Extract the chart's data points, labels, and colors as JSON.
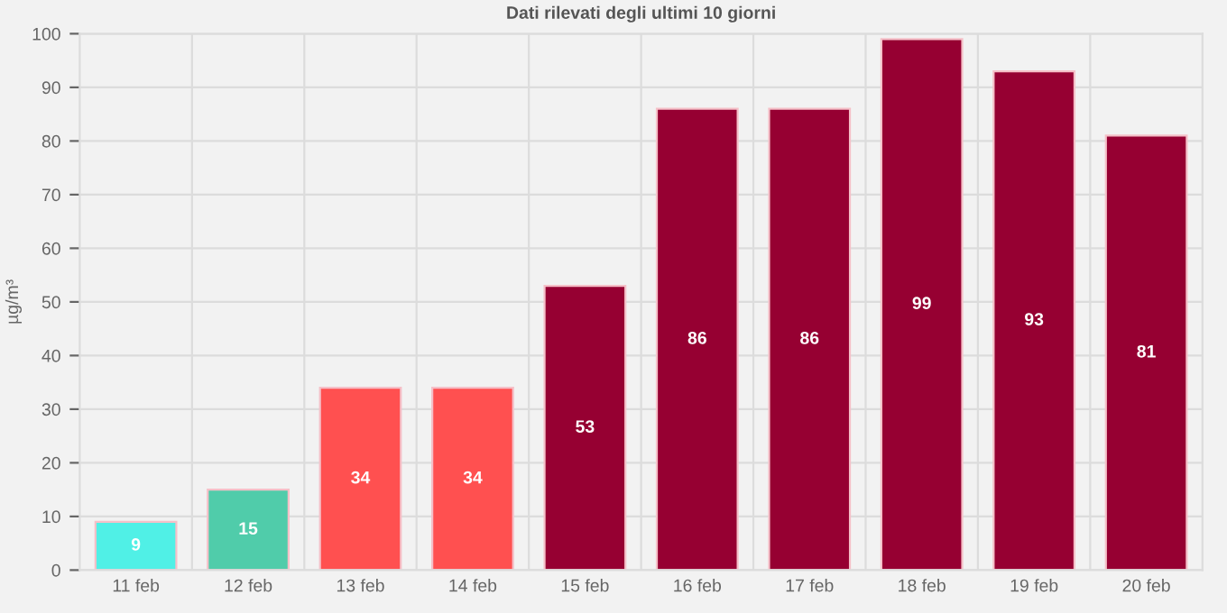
{
  "chart_data": {
    "type": "bar",
    "title": "Dati rilevati degli ultimi 10 giorni",
    "ylabel": "µg/m³",
    "categories": [
      "11 feb",
      "12 feb",
      "13 feb",
      "14 feb",
      "15 feb",
      "16 feb",
      "17 feb",
      "18 feb",
      "19 feb",
      "20 feb"
    ],
    "values": [
      9,
      15,
      34,
      34,
      53,
      86,
      86,
      99,
      93,
      81
    ],
    "colors": [
      "#50f0e6",
      "#50ccaa",
      "#ff5050",
      "#ff5050",
      "#960032",
      "#960032",
      "#960032",
      "#960032",
      "#960032",
      "#960032"
    ],
    "ylim": [
      0,
      100
    ],
    "yticks": [
      0,
      10,
      20,
      30,
      40,
      50,
      60,
      70,
      80,
      90,
      100
    ],
    "grid": true,
    "data_labels": true
  }
}
